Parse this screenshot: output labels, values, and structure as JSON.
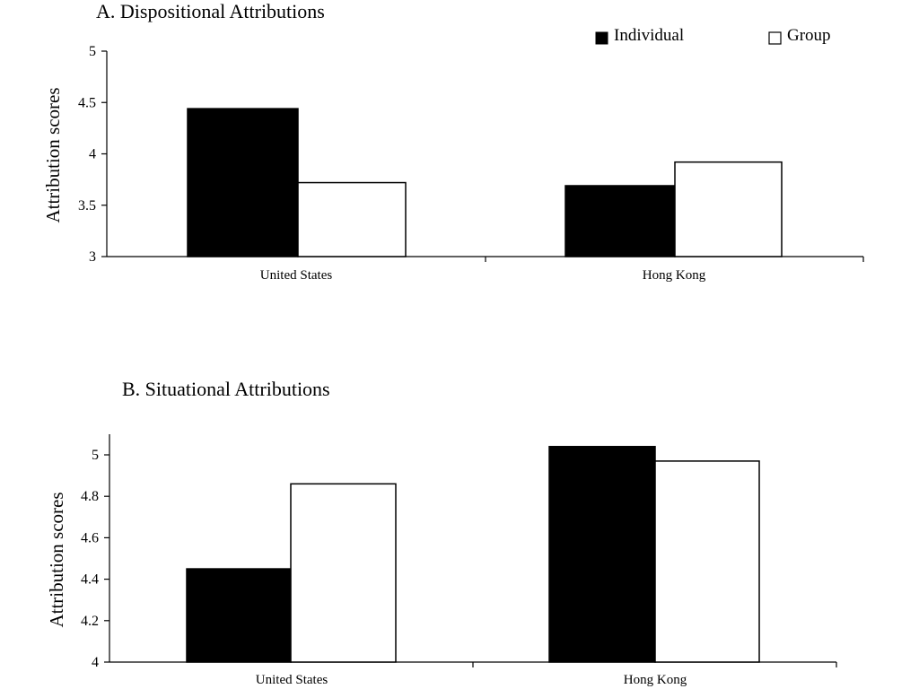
{
  "legend": {
    "individual_label": "Individual",
    "group_label": "Group",
    "individual_color": "#000000",
    "group_color": "#ffffff"
  },
  "chart_data": [
    {
      "type": "bar",
      "title": "A. Dispositional Attributions",
      "ylabel": "Attribution scores",
      "xlabel": "",
      "categories": [
        "United States",
        "Hong Kong"
      ],
      "ylim": [
        3,
        5
      ],
      "yticks": [
        "3",
        "3.5",
        "4",
        "4.5",
        "5"
      ],
      "series": [
        {
          "name": "Individual",
          "values": [
            4.44,
            3.69
          ]
        },
        {
          "name": "Group",
          "values": [
            3.72,
            3.92
          ]
        }
      ]
    },
    {
      "type": "bar",
      "title": "B. Situational Attributions",
      "ylabel": "Attribution scores",
      "xlabel": "",
      "categories": [
        "United States",
        "Hong Kong"
      ],
      "ylim": [
        4,
        5.1
      ],
      "yticks": [
        "4",
        "4.2",
        "4.4",
        "4.6",
        "4.8",
        "5"
      ],
      "series": [
        {
          "name": "Individual",
          "values": [
            4.45,
            5.04
          ]
        },
        {
          "name": "Group",
          "values": [
            4.86,
            4.97
          ]
        }
      ]
    }
  ]
}
